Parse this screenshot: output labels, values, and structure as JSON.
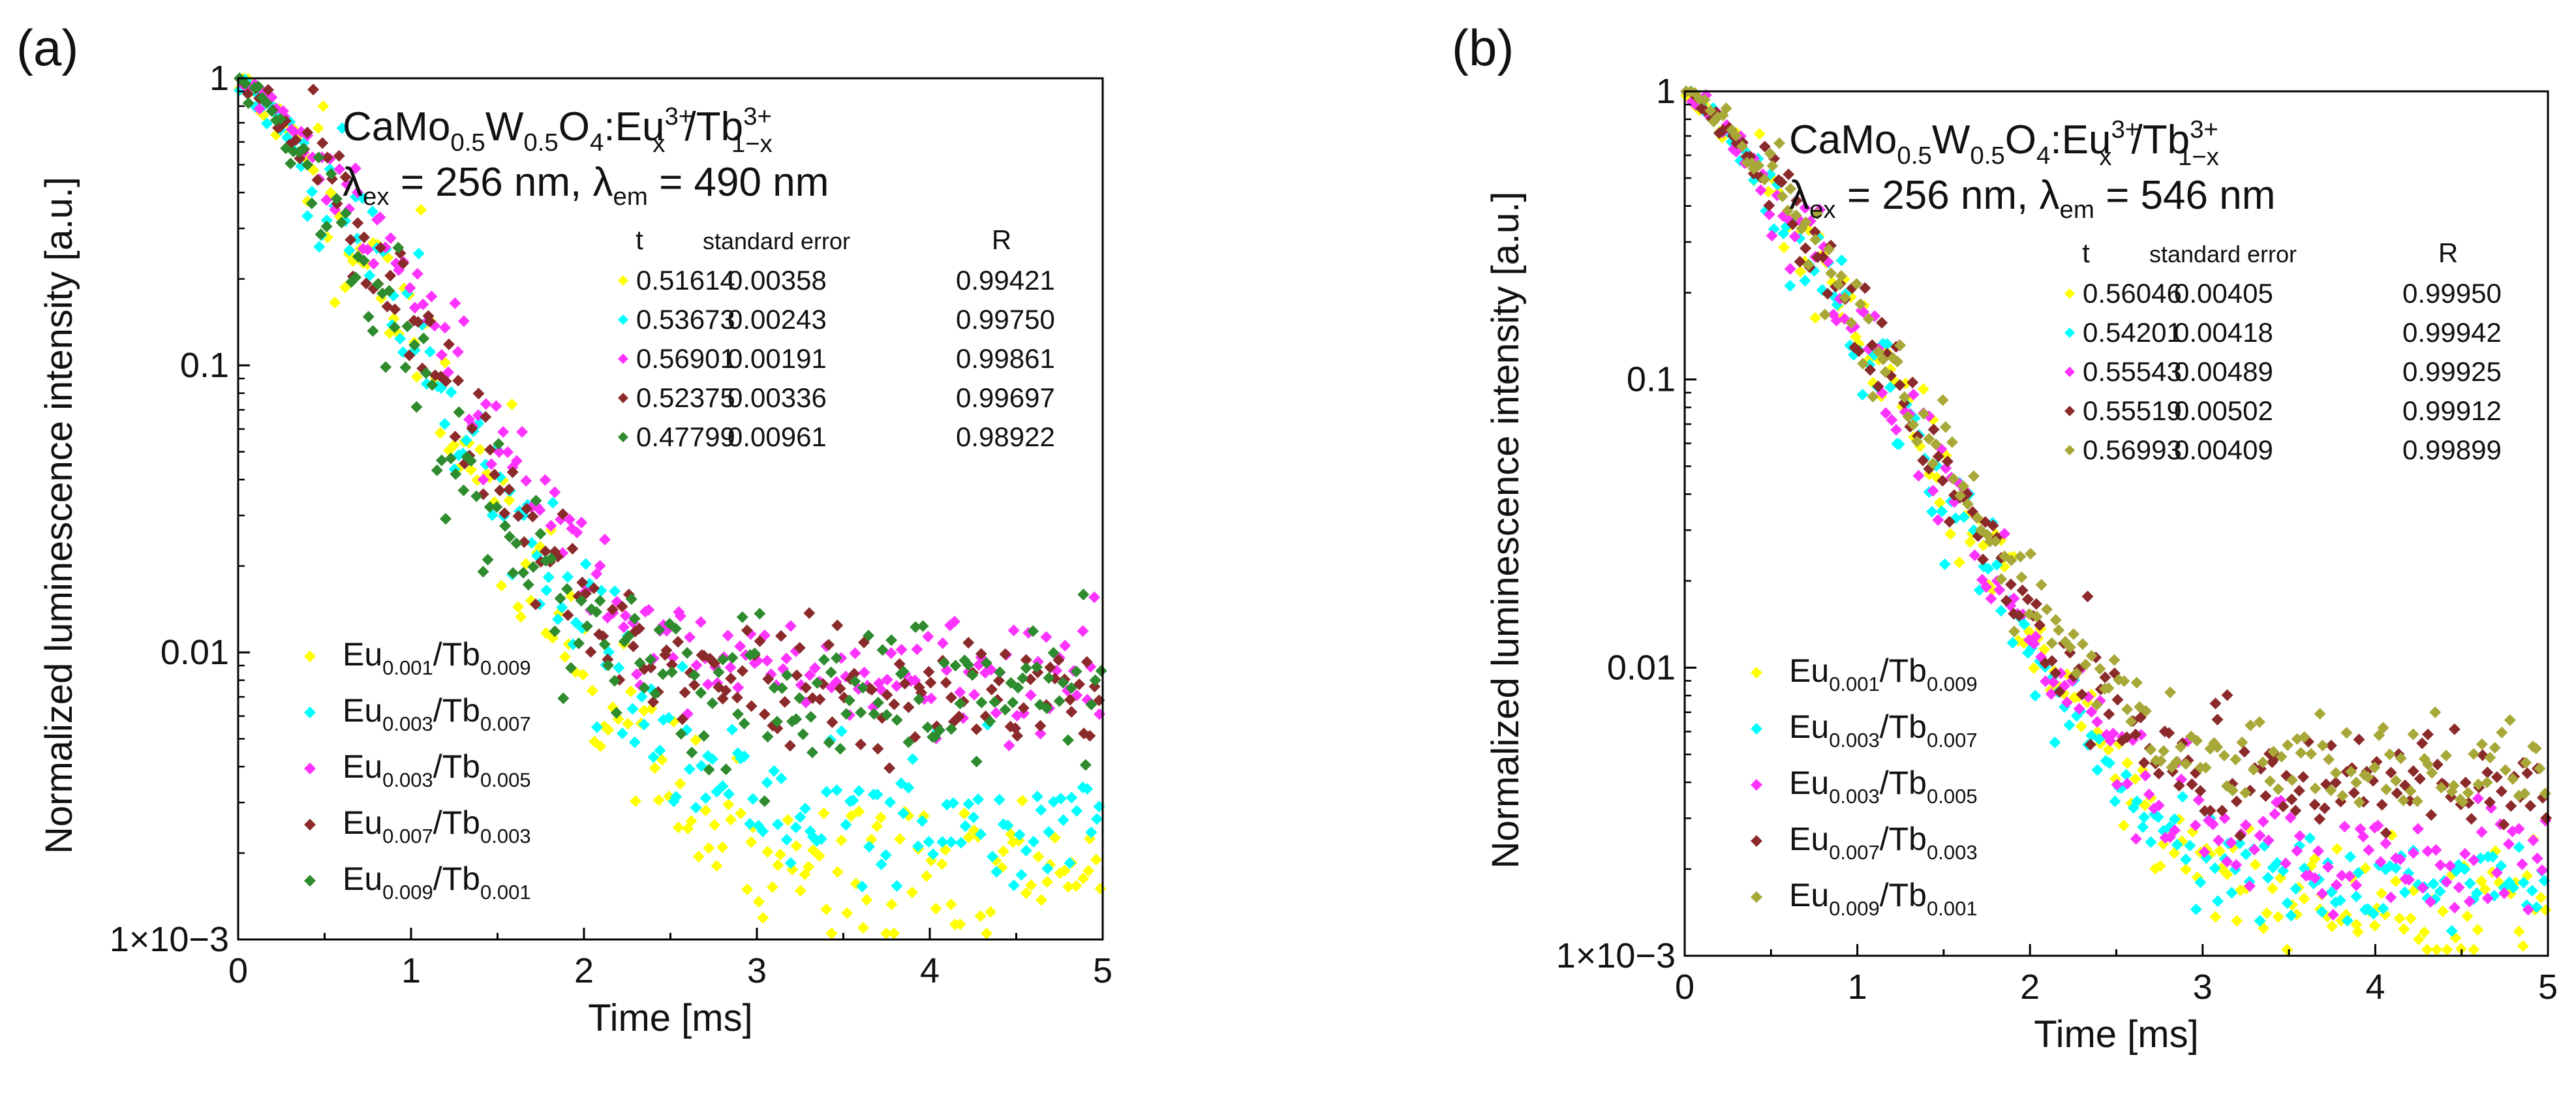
{
  "chart_data": [
    {
      "type": "scatter",
      "panel_label": "(a)",
      "title_formula": {
        "base": "CaMo",
        "mo_sub": "0.5",
        "w": "W",
        "w_sub": "0.5",
        "o": "O",
        "o_sub": "4",
        "colon": ":Eu",
        "eu_sub": "x",
        "eu_sup": "3+",
        "slash": "/Tb",
        "tb_sub": "1−x",
        "tb_sup": "3+"
      },
      "excitation": {
        "ex_symbol": "λ",
        "ex_sub": "ex",
        "ex_value": " = 256 nm, ",
        "em_symbol": "λ",
        "em_sub": "em",
        "em_value": " = 490 nm"
      },
      "xlabel": "Time [ms]",
      "ylabel": "Normalized luminescence intensity [a.u.]",
      "xlim": [
        0,
        5
      ],
      "ylim": [
        0.001,
        1
      ],
      "yscale": "log",
      "x_ticks": [
        "0",
        "1",
        "2",
        "3",
        "4",
        "5"
      ],
      "y_ticks": [
        {
          "value": 1,
          "label": "1"
        },
        {
          "value": 0.1,
          "label": "0.1"
        },
        {
          "value": 0.01,
          "label": "0.01"
        },
        {
          "value": 0.001,
          "label": "1×10−3"
        }
      ],
      "fit_table": {
        "headers": [
          "t",
          "standard error",
          "R"
        ],
        "rows": [
          {
            "color": "#ffff00",
            "t": "0.51614",
            "err": "0.00358",
            "r": "0.99421"
          },
          {
            "color": "#00ffff",
            "t": "0.53673",
            "err": "0.00243",
            "r": "0.99750"
          },
          {
            "color": "#ff33ff",
            "t": "0.56901",
            "err": "0.00191",
            "r": "0.99861"
          },
          {
            "color": "#8b2a2a",
            "t": "0.52375",
            "err": "0.00336",
            "r": "0.99697"
          },
          {
            "color": "#2e8b2e",
            "t": "0.47799",
            "err": "0.00961",
            "r": "0.98922"
          }
        ]
      },
      "series": [
        {
          "name": "Eu0.001/Tb0.009",
          "eu": "Eu",
          "eu_sub": "0.001",
          "tb": "/Tb",
          "tb_sub": "0.009",
          "color": "#ffff00",
          "tau": 0.516,
          "floor": 0.0017,
          "noise": 0.32,
          "seed": 11
        },
        {
          "name": "Eu0.003/Tb0.007",
          "eu": "Eu",
          "eu_sub": "0.003",
          "tb": "/Tb",
          "tb_sub": "0.007",
          "color": "#00ffff",
          "tau": 0.537,
          "floor": 0.0027,
          "noise": 0.28,
          "seed": 23
        },
        {
          "name": "Eu0.003/Tb0.005",
          "eu": "Eu",
          "eu_sub": "0.003",
          "tb": "/Tb",
          "tb_sub": "0.005",
          "color": "#ff33ff",
          "tau": 0.569,
          "floor": 0.008,
          "noise": 0.22,
          "seed": 37
        },
        {
          "name": "Eu0.007/Tb0.003",
          "eu": "Eu",
          "eu_sub": "0.007",
          "tb": "/Tb",
          "tb_sub": "0.003",
          "color": "#8b2a2a",
          "tau": 0.524,
          "floor": 0.0072,
          "noise": 0.24,
          "seed": 41
        },
        {
          "name": "Eu0.009/Tb0.001",
          "eu": "Eu",
          "eu_sub": "0.009",
          "tb": "/Tb",
          "tb_sub": "0.001",
          "color": "#2e8b2e",
          "tau": 0.478,
          "floor": 0.007,
          "noise": 0.3,
          "seed": 53
        }
      ]
    },
    {
      "type": "scatter",
      "panel_label": "(b)",
      "title_formula": {
        "base": "CaMo",
        "mo_sub": "0.5",
        "w": "W",
        "w_sub": "0.5",
        "o": "O",
        "o_sub": "4",
        "colon": ":Eu",
        "eu_sub": "x",
        "eu_sup": "3+",
        "slash": "/Tb",
        "tb_sub": "1−x",
        "tb_sup": "3+"
      },
      "excitation": {
        "ex_symbol": "λ",
        "ex_sub": "ex",
        "ex_value": " = 256 nm, ",
        "em_symbol": "λ",
        "em_sub": "em",
        "em_value": " = 546 nm"
      },
      "xlabel": "Time [ms]",
      "ylabel": "Normalized luminescence intensity [a.u.]",
      "xlim": [
        0,
        5
      ],
      "ylim": [
        0.001,
        1
      ],
      "yscale": "log",
      "x_ticks": [
        "0",
        "1",
        "2",
        "3",
        "4",
        "5"
      ],
      "y_ticks": [
        {
          "value": 1,
          "label": "1"
        },
        {
          "value": 0.1,
          "label": "0.1"
        },
        {
          "value": 0.01,
          "label": "0.01"
        },
        {
          "value": 0.001,
          "label": "1×10−3"
        }
      ],
      "fit_table": {
        "headers": [
          "t",
          "standard error",
          "R"
        ],
        "rows": [
          {
            "color": "#ffff00",
            "t": "0.56046",
            "err": "0.00405",
            "r": "0.99950"
          },
          {
            "color": "#00ffff",
            "t": "0.54201",
            "err": "0.00418",
            "r": "0.99942"
          },
          {
            "color": "#ff33ff",
            "t": "0.55543",
            "err": "0.00489",
            "r": "0.99925"
          },
          {
            "color": "#8b2a2a",
            "t": "0.55519",
            "err": "0.00502",
            "r": "0.99912"
          },
          {
            "color": "#a8a838",
            "t": "0.56993",
            "err": "0.00409",
            "r": "0.99899"
          }
        ]
      },
      "series": [
        {
          "name": "Eu0.001/Tb0.009",
          "eu": "Eu",
          "eu_sub": "0.001",
          "tb": "/Tb",
          "tb_sub": "0.009",
          "color": "#ffff00",
          "tau": 0.56,
          "floor": 0.0015,
          "noise": 0.22,
          "seed": 61
        },
        {
          "name": "Eu0.003/Tb0.007",
          "eu": "Eu",
          "eu_sub": "0.003",
          "tb": "/Tb",
          "tb_sub": "0.007",
          "color": "#00ffff",
          "tau": 0.542,
          "floor": 0.0018,
          "noise": 0.2,
          "seed": 73
        },
        {
          "name": "Eu0.003/Tb0.005",
          "eu": "Eu",
          "eu_sub": "0.003",
          "tb": "/Tb",
          "tb_sub": "0.005",
          "color": "#ff33ff",
          "tau": 0.555,
          "floor": 0.0022,
          "noise": 0.2,
          "seed": 79
        },
        {
          "name": "Eu0.007/Tb0.003",
          "eu": "Eu",
          "eu_sub": "0.007",
          "tb": "/Tb",
          "tb_sub": "0.003",
          "color": "#8b2a2a",
          "tau": 0.555,
          "floor": 0.004,
          "noise": 0.2,
          "seed": 89
        },
        {
          "name": "Eu0.009/Tb0.001",
          "eu": "Eu",
          "eu_sub": "0.009",
          "tb": "/Tb",
          "tb_sub": "0.001",
          "color": "#a8a838",
          "tau": 0.57,
          "floor": 0.0042,
          "noise": 0.22,
          "seed": 97
        }
      ]
    }
  ]
}
